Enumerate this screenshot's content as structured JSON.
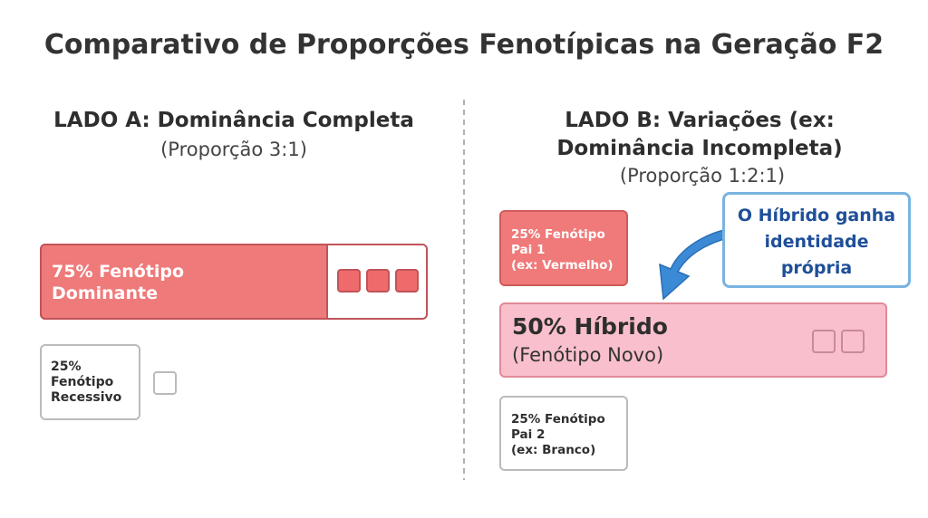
{
  "title": "Comparativo de Proporções Fenotípicas na Geração F2",
  "left": {
    "heading": "LADO A: Dominância Completa",
    "subheading": "(Proporção 3:1)",
    "dominant": [
      "75% Fenótipo",
      "Dominante"
    ],
    "recessive": [
      "25%",
      "Fenótipo",
      "Recessivo"
    ]
  },
  "right": {
    "heading": [
      "LADO B: Variações (ex:",
      "Dominância Incompleta)"
    ],
    "subheading": "(Proporção 1:2:1)",
    "parent1": [
      "25% Fenótipo",
      "Pai 1",
      "(ex: Vermelho)"
    ],
    "hybrid": {
      "title": "50% Híbrido",
      "subtitle": "(Fenótipo Novo)"
    },
    "parent2": [
      "25% Fenótipo",
      "Pai 2",
      "(ex: Branco)"
    ],
    "callout": [
      "O Híbrido ganha",
      "identidade",
      "própria"
    ]
  }
}
